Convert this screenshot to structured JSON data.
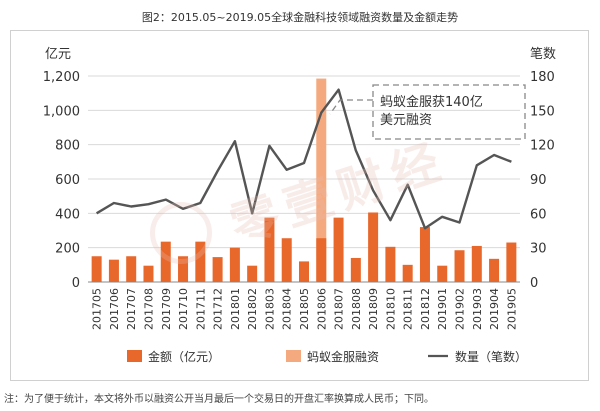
{
  "title": "图2：2015.05~2019.05全球金融科技领域融资数量及金额走势",
  "footnote": "注：为了便于统计，本文将外币以融资公开当月最后一个交易日的开盘汇率换算成人民币；下同。",
  "watermark": "零壹财经",
  "chart_data": {
    "type": "bar+line",
    "categories": [
      "201705",
      "201706",
      "201707",
      "201708",
      "201709",
      "201710",
      "201711",
      "201712",
      "201801",
      "201802",
      "201803",
      "201804",
      "201805",
      "201806",
      "201807",
      "201808",
      "201809",
      "201810",
      "201811",
      "201812",
      "201901",
      "201902",
      "201903",
      "201904",
      "201905"
    ],
    "left_axis": {
      "title": "亿元",
      "min": 0,
      "max": 1200,
      "ticks": [
        "0",
        "200",
        "400",
        "600",
        "800",
        "1,000",
        "1,200"
      ]
    },
    "right_axis": {
      "title": "笔数",
      "min": 0,
      "max": 180,
      "ticks": [
        "0",
        "30",
        "60",
        "90",
        "120",
        "150",
        "180"
      ]
    },
    "series": [
      {
        "name": "金额（亿元）",
        "kind": "bar",
        "axis": "left",
        "color": "#e8672a",
        "values": [
          150,
          130,
          150,
          95,
          235,
          150,
          235,
          145,
          200,
          95,
          375,
          255,
          120,
          255,
          375,
          140,
          405,
          205,
          100,
          320,
          95,
          185,
          210,
          135,
          230
        ]
      },
      {
        "name": "蚂蚁金服融资",
        "kind": "bar",
        "axis": "left",
        "color": "#f4a97e",
        "index": 13,
        "value": 1185
      },
      {
        "name": "数量（笔数）",
        "kind": "line",
        "axis": "right",
        "color": "#555555",
        "values": [
          60,
          69,
          66,
          68,
          72,
          64,
          69,
          97,
          123,
          60,
          119,
          98,
          104,
          148,
          168,
          115,
          80,
          54,
          85,
          47,
          57,
          52,
          102,
          111,
          105
        ]
      }
    ],
    "annotation": {
      "text_line1": "蚂蚁金服获140亿",
      "text_line2": "美元融资"
    },
    "legend_position": "bottom"
  }
}
